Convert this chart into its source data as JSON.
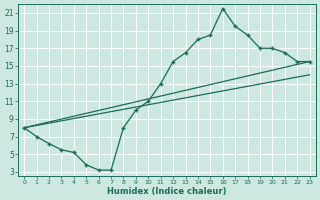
{
  "xlabel": "Humidex (Indice chaleur)",
  "xlim": [
    -0.5,
    23.5
  ],
  "ylim": [
    2.5,
    22
  ],
  "xticks": [
    0,
    1,
    2,
    3,
    4,
    5,
    6,
    7,
    8,
    9,
    10,
    11,
    12,
    13,
    14,
    15,
    16,
    17,
    18,
    19,
    20,
    21,
    22,
    23
  ],
  "yticks": [
    3,
    5,
    7,
    9,
    11,
    13,
    15,
    17,
    19,
    21
  ],
  "bg_color": "#cce8e0",
  "grid_color": "#b0d8ce",
  "line_color": "#1a6b5a",
  "line1_x": [
    0,
    1,
    2,
    3,
    4,
    5,
    6,
    7,
    8,
    9,
    10,
    11,
    12,
    13,
    14,
    15,
    16,
    17,
    18,
    19,
    20,
    21,
    22,
    23
  ],
  "line1_y": [
    8,
    7,
    6.2,
    5.5,
    5.2,
    3.8,
    3.2,
    3.2,
    8,
    10,
    11,
    13,
    15.5,
    16.5,
    18,
    18.5,
    21.5,
    19.5,
    18.5,
    17,
    17,
    16.5,
    15.5,
    15.5
  ],
  "line2_x": [
    0,
    23
  ],
  "line2_y": [
    8,
    15.5
  ],
  "line3_x": [
    0,
    23
  ],
  "line3_y": [
    8,
    14
  ]
}
